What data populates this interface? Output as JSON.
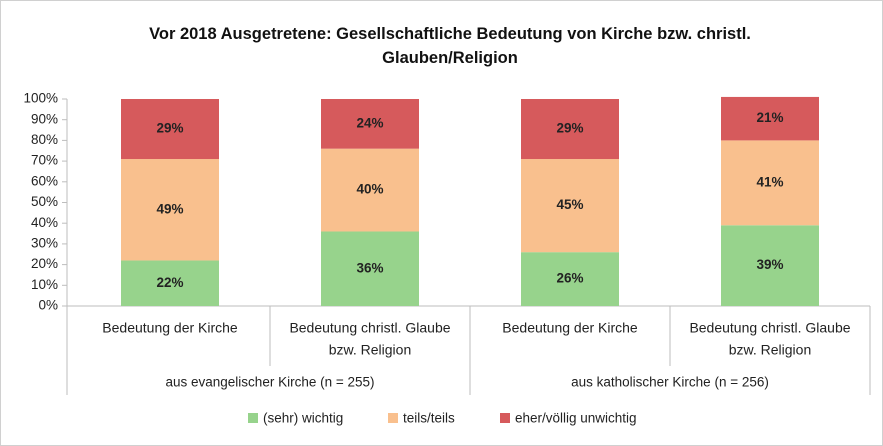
{
  "chart_data": {
    "type": "stacked_bar",
    "title": "Vor 2018 Ausgetretene: Gesellschaftliche Bedeutung von Kirche bzw. christl. Glauben/Religion",
    "categories": [
      [
        "Bedeutung der Kirche"
      ],
      [
        "Bedeutung christl. Glaube",
        "bzw. Religion"
      ],
      [
        "Bedeutung der Kirche"
      ],
      [
        "Bedeutung christl. Glaube",
        "bzw. Religion"
      ]
    ],
    "groups": [
      "aus evangelischer Kirche (n = 255)",
      "aus katholischer Kirche (n = 256)"
    ],
    "series": [
      {
        "name": "(sehr) wichtig",
        "color": "#97d38c",
        "values": [
          22,
          36,
          26,
          39
        ],
        "value_labels": [
          "22%",
          "36%",
          "26%",
          "39%"
        ]
      },
      {
        "name": "teils/teils",
        "color": "#f9c08e",
        "values": [
          49,
          40,
          45,
          41
        ],
        "value_labels": [
          "49%",
          "40%",
          "45%",
          "41%"
        ]
      },
      {
        "name": "eher/völlig unwichtig",
        "color": "#d65a5c",
        "values": [
          29,
          24,
          29,
          21
        ],
        "value_labels": [
          "29%",
          "24%",
          "29%",
          "21%"
        ]
      }
    ],
    "ylim": [
      0,
      100
    ],
    "yticks": [
      {
        "value": 0,
        "label": "0%"
      },
      {
        "value": 10,
        "label": "10%"
      },
      {
        "value": 20,
        "label": "20%"
      },
      {
        "value": 30,
        "label": "30%"
      },
      {
        "value": 40,
        "label": "40%"
      },
      {
        "value": 50,
        "label": "50%"
      },
      {
        "value": 60,
        "label": "60%"
      },
      {
        "value": 70,
        "label": "70%"
      },
      {
        "value": 80,
        "label": "80%"
      },
      {
        "value": 90,
        "label": "90%"
      },
      {
        "value": 100,
        "label": "100%"
      }
    ],
    "legend": "bottom"
  }
}
